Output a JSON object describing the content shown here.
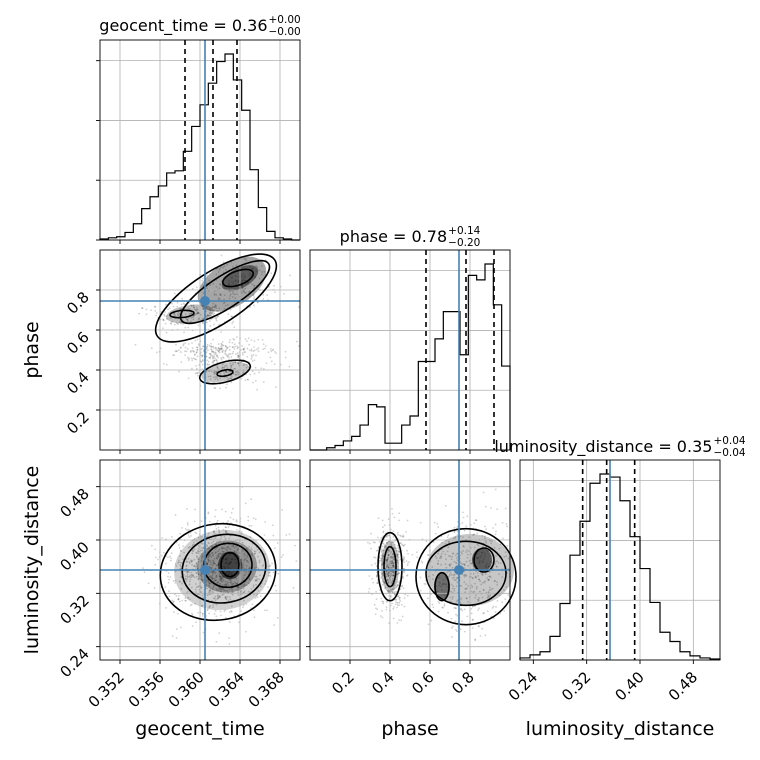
{
  "chart_data": {
    "type": "corner",
    "parameters": [
      "geocent_time",
      "phase",
      "luminosity_distance"
    ],
    "truths": {
      "geocent_time": 0.3605,
      "phase": 0.745,
      "luminosity_distance": 0.355
    },
    "ranges": {
      "geocent_time": [
        0.35,
        0.37
      ],
      "phase": [
        0.0,
        1.0
      ],
      "luminosity_distance": [
        0.22,
        0.52
      ]
    },
    "ticks": {
      "geocent_time": [
        "0.352",
        "0.356",
        "0.360",
        "0.364",
        "0.368"
      ],
      "phase": [
        "0.2",
        "0.4",
        "0.6",
        "0.8"
      ],
      "luminosity_distance": [
        "0.24",
        "0.32",
        "0.40",
        "0.48"
      ]
    },
    "titles": [
      {
        "param": "geocent_time",
        "text": "geocent_time = 0.36",
        "sup": "+0.00",
        "sub": "−0.00"
      },
      {
        "param": "phase",
        "text": "phase = 0.78",
        "sup": "+0.14",
        "sub": "−0.20"
      },
      {
        "param": "luminosity_distance",
        "text": "luminosity_distance = 0.35",
        "sup": "+0.04",
        "sub": "−0.04"
      }
    ],
    "quantiles": {
      "geocent_time": [
        0.3585,
        0.3613,
        0.3637
      ],
      "phase": [
        0.58,
        0.78,
        0.92
      ],
      "luminosity_distance": [
        0.314,
        0.35,
        0.392
      ]
    },
    "histograms": {
      "geocent_time": [
        1,
        2,
        3,
        7,
        15,
        29,
        40,
        50,
        62,
        64,
        82,
        105,
        125,
        145,
        165,
        172,
        148,
        120,
        65,
        30,
        8,
        2,
        1,
        0
      ],
      "phase": [
        0,
        0,
        1,
        2,
        4,
        6,
        11,
        20,
        19,
        3,
        3,
        11,
        15,
        39,
        39,
        49,
        61,
        61,
        42,
        77,
        75,
        82,
        64,
        37
      ],
      "luminosity_distance": [
        2,
        5,
        8,
        23,
        55,
        102,
        135,
        172,
        181,
        178,
        155,
        120,
        89,
        56,
        27,
        18,
        8,
        4,
        2,
        1
      ]
    },
    "xlabel": [
      "geocent_time",
      "phase",
      "luminosity_distance"
    ],
    "ylabel": [
      "phase",
      "luminosity_distance"
    ],
    "grid": true,
    "colors": {
      "truth": "#4682b4",
      "hist": "#000000",
      "grid": "#b0b0b0"
    }
  }
}
